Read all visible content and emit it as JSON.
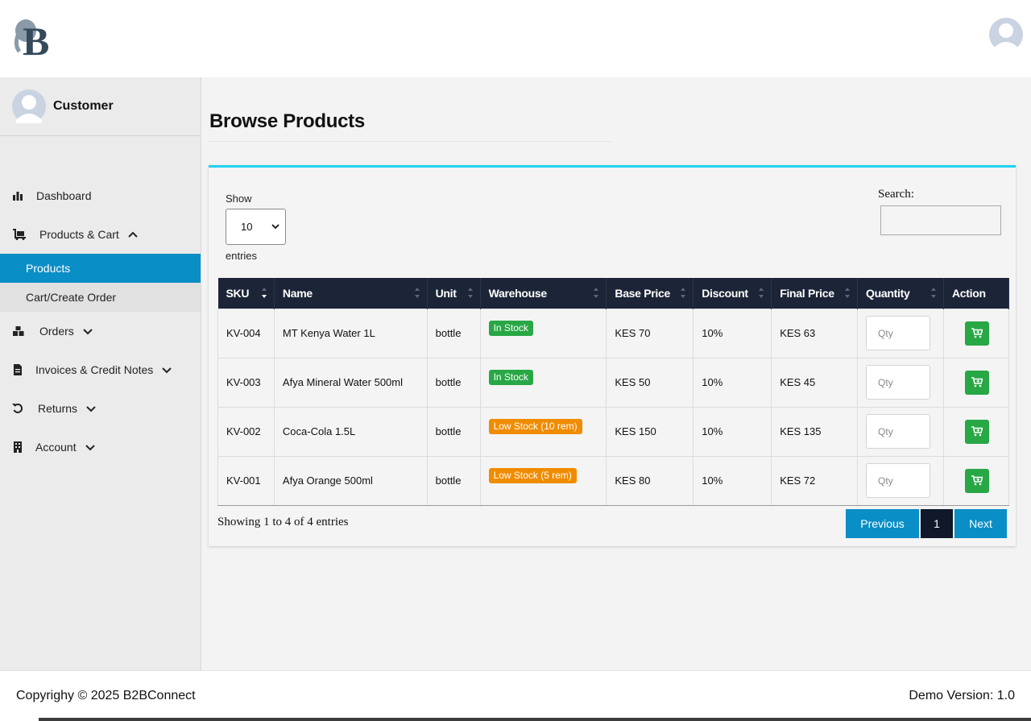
{
  "sidebar": {
    "user_name": "Customer",
    "items": [
      {
        "label": "Dashboard"
      },
      {
        "label": "Products & Cart"
      },
      {
        "label": "Orders"
      },
      {
        "label": "Invoices & Credit Notes"
      },
      {
        "label": "Returns"
      },
      {
        "label": "Account"
      }
    ],
    "sub_items": [
      {
        "label": "Products",
        "active": true
      },
      {
        "label": "Cart/Create Order",
        "active": false
      }
    ]
  },
  "main": {
    "title": "Browse Products",
    "show_label": "Show",
    "entries_value": "10",
    "entries_label": "entries",
    "search_label": "Search:",
    "search_value": "",
    "columns": [
      "SKU",
      "Name",
      "Unit",
      "Warehouse",
      "Base Price",
      "Discount",
      "Final Price",
      "Quantity",
      "Action"
    ],
    "qty_placeholder": "Qty",
    "rows": [
      {
        "sku": "KV-004",
        "name": "MT Kenya Water 1L",
        "unit": "bottle",
        "warehouse": "In Stock",
        "status": "green",
        "base_price": "KES 70",
        "discount": "10%",
        "final_price": "KES 63"
      },
      {
        "sku": "KV-003",
        "name": "Afya Mineral Water 500ml",
        "unit": "bottle",
        "warehouse": "In Stock",
        "status": "green",
        "base_price": "KES 50",
        "discount": "10%",
        "final_price": "KES 45"
      },
      {
        "sku": "KV-002",
        "name": "Coca-Cola 1.5L",
        "unit": "bottle",
        "warehouse": "Low Stock (10 rem)",
        "status": "orange",
        "base_price": "KES 150",
        "discount": "10%",
        "final_price": "KES 135"
      },
      {
        "sku": "KV-001",
        "name": "Afya Orange 500ml",
        "unit": "bottle",
        "warehouse": "Low Stock (5 rem)",
        "status": "orange",
        "base_price": "KES 80",
        "discount": "10%",
        "final_price": "KES 72"
      }
    ],
    "info": "Showing 1 to 4 of 4 entries",
    "pagination": {
      "previous": "Previous",
      "current": "1",
      "next": "Next"
    }
  },
  "footer": {
    "copyright": "Copyrighy © 2025 B2BConnect",
    "version": "Demo Version: 1.0"
  },
  "colors": {
    "accent": "#0a8ec6",
    "table_header": "#1c2537",
    "in_stock": "#28a745",
    "low_stock": "#f08c00",
    "card_top": "#1fd3ef"
  }
}
